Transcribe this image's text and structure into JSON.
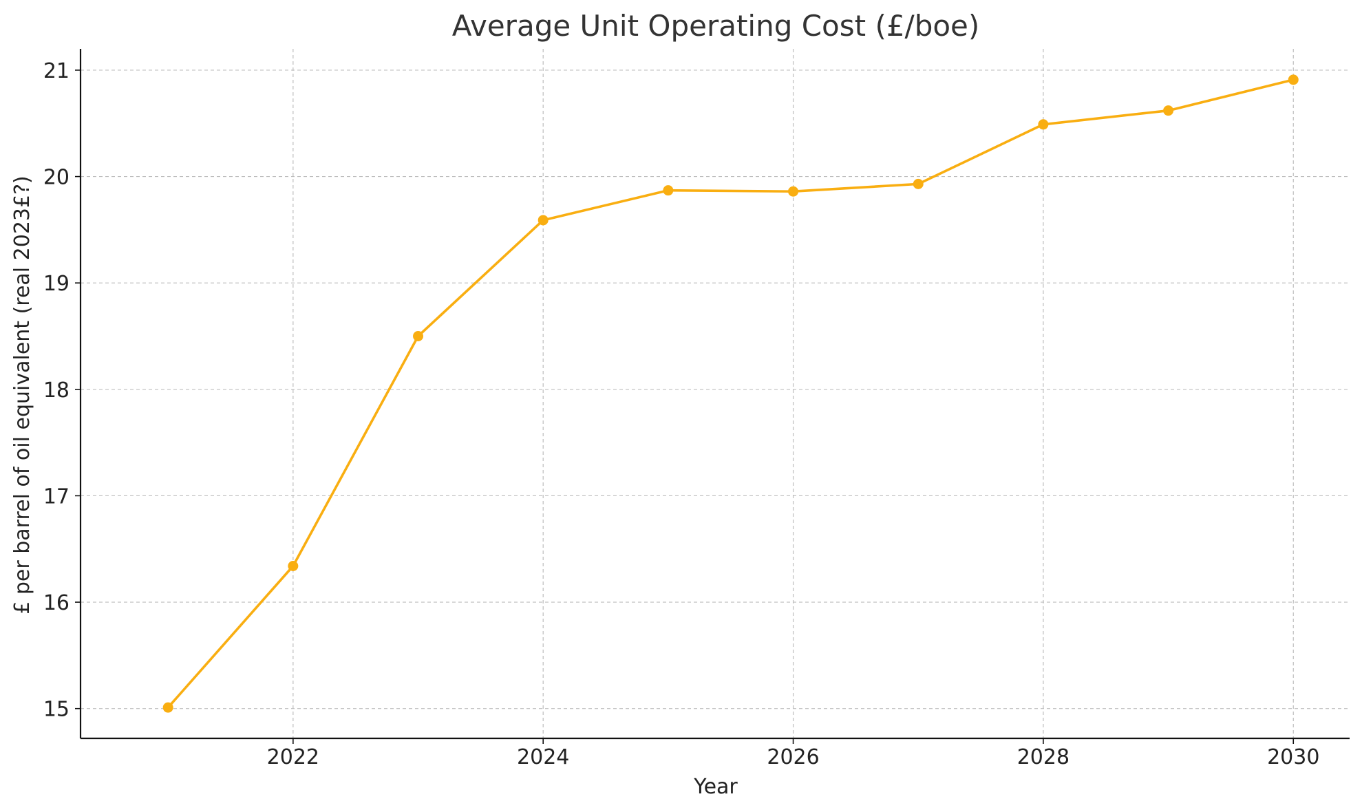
{
  "chart_data": {
    "type": "line",
    "title": "Average Unit Operating Cost (£/boe)",
    "xlabel": "Year",
    "ylabel": "£ per barrel of oil equivalent (real 2023£?)",
    "x": [
      2021,
      2022,
      2023,
      2024,
      2025,
      2026,
      2027,
      2028,
      2029,
      2030
    ],
    "series": [
      {
        "values": [
          15.01,
          16.34,
          18.5,
          19.59,
          19.87,
          19.86,
          19.93,
          20.49,
          20.62,
          20.91
        ],
        "color": "#F9AE11",
        "marker": "circle"
      }
    ],
    "xlim": [
      2020.3,
      2030.45
    ],
    "ylim": [
      14.72,
      21.2
    ],
    "xticks": [
      2022,
      2024,
      2026,
      2028,
      2030
    ],
    "yticks": [
      15,
      16,
      17,
      18,
      19,
      20,
      21
    ],
    "grid": true,
    "legend": "none"
  }
}
